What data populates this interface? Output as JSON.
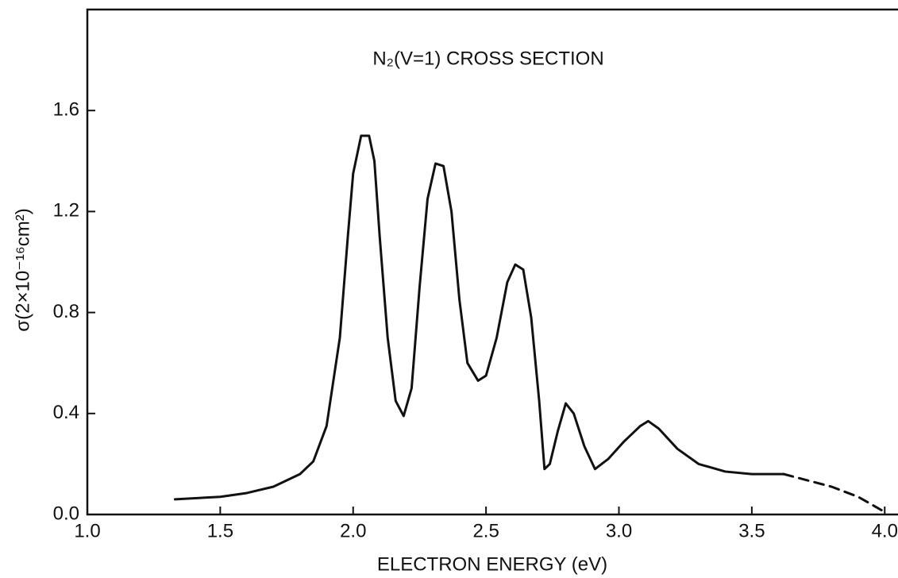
{
  "chart_data": {
    "type": "line",
    "title": "N₂(V=1) CROSS SECTION",
    "x_label": "ELECTRON ENERGY (eV)",
    "y_label": "σ(2×10⁻¹⁶cm²)",
    "xlim": [
      1.0,
      4.05
    ],
    "ylim": [
      0,
      2.0
    ],
    "xticks": [
      {
        "value": 1.0,
        "label": "1.0"
      },
      1.5,
      {
        "value": 2.0,
        "label": "2.0"
      },
      2.5,
      {
        "value": 3.0,
        "label": "3.0"
      },
      3.5,
      {
        "value": 4.0,
        "label": "4.0"
      }
    ],
    "yticks": [
      {
        "value": 0,
        "label": "0.0"
      },
      0.4,
      0.8,
      1.2,
      1.6
    ],
    "series": [
      {
        "color": "#111111",
        "dash": false,
        "x": [
          1.33,
          1.5,
          1.6,
          1.7,
          1.8,
          1.85,
          1.9,
          1.95,
          1.98,
          2.0,
          2.03,
          2.06,
          2.08,
          2.1,
          2.13,
          2.16,
          2.19,
          2.22,
          2.25,
          2.28,
          2.31,
          2.34,
          2.37,
          2.4,
          2.43,
          2.47,
          2.5,
          2.54,
          2.58,
          2.61,
          2.64,
          2.67,
          2.7,
          2.72,
          2.74,
          2.77,
          2.8,
          2.83,
          2.87,
          2.91,
          2.96,
          3.02,
          3.08,
          3.11,
          3.15,
          3.22,
          3.3,
          3.4,
          3.5,
          3.62
        ],
        "values": [
          0.06,
          0.07,
          0.085,
          0.11,
          0.16,
          0.21,
          0.35,
          0.7,
          1.1,
          1.35,
          1.5,
          1.5,
          1.4,
          1.1,
          0.7,
          0.45,
          0.39,
          0.5,
          0.9,
          1.25,
          1.39,
          1.38,
          1.2,
          0.85,
          0.6,
          0.53,
          0.55,
          0.7,
          0.92,
          0.99,
          0.97,
          0.78,
          0.45,
          0.18,
          0.2,
          0.33,
          0.44,
          0.4,
          0.27,
          0.18,
          0.22,
          0.29,
          0.35,
          0.37,
          0.34,
          0.26,
          0.2,
          0.17,
          0.16,
          0.16
        ]
      },
      {
        "color": "#111111",
        "dash": true,
        "x": [
          3.62,
          3.8,
          3.9,
          4.0
        ],
        "values": [
          0.16,
          0.11,
          0.07,
          0.01
        ]
      }
    ]
  }
}
